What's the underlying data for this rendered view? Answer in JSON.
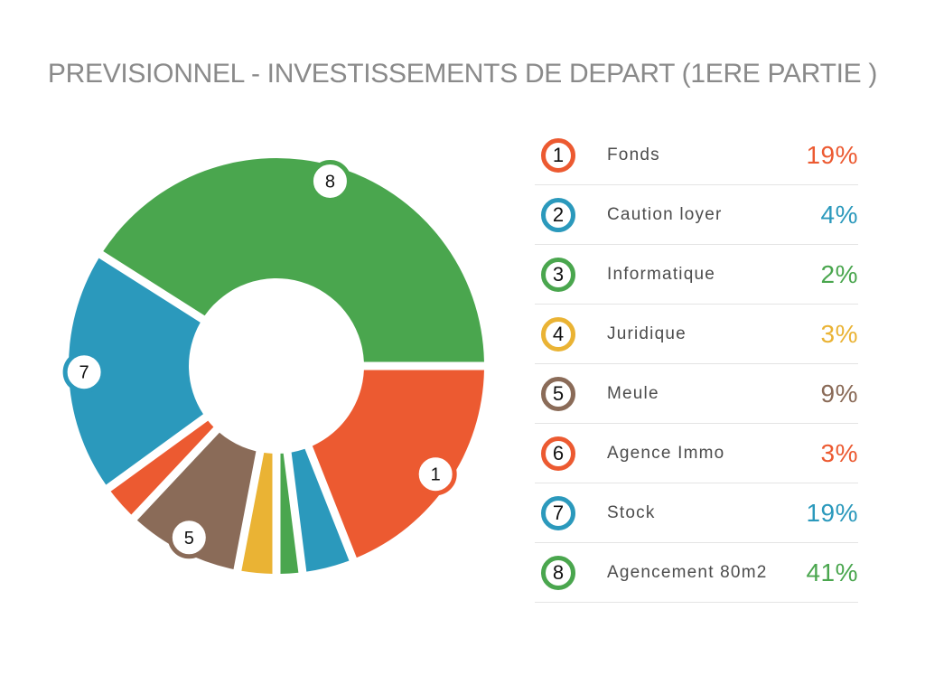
{
  "title": "PREVISIONNEL - INVESTISSEMENTS DE DEPART (1ERE PARTIE )",
  "colors": {
    "title": "#8A8A8A",
    "label": "#4C4C4C",
    "number": "#111111",
    "separator": "#E4E4E4",
    "background": "#FFFFFF",
    "orange": "#EC5A31",
    "teal": "#2B99BC",
    "green": "#4AA64E",
    "yellow": "#EAB334",
    "brown": "#8A6B58"
  },
  "chart_data": {
    "type": "pie",
    "variant": "donut",
    "title": "PREVISIONNEL - INVESTISSEMENTS DE DEPART (1ERE PARTIE )",
    "start_angle_deg": 0,
    "direction": "clockwise",
    "total": 100,
    "legend_position": "right",
    "segments": [
      {
        "n": "1",
        "label": "Fonds",
        "value": 19,
        "pct": "19%",
        "color": "#EC5A31",
        "chart_badge": true
      },
      {
        "n": "2",
        "label": "Caution loyer",
        "value": 4,
        "pct": "4%",
        "color": "#2B99BC",
        "chart_badge": false
      },
      {
        "n": "3",
        "label": "Informatique",
        "value": 2,
        "pct": "2%",
        "color": "#4AA64E",
        "chart_badge": false
      },
      {
        "n": "4",
        "label": "Juridique",
        "value": 3,
        "pct": "3%",
        "color": "#EAB334",
        "chart_badge": false
      },
      {
        "n": "5",
        "label": "Meule",
        "value": 9,
        "pct": "9%",
        "color": "#8A6B58",
        "chart_badge": true
      },
      {
        "n": "6",
        "label": "Agence Immo",
        "value": 3,
        "pct": "3%",
        "color": "#EC5A31",
        "chart_badge": false
      },
      {
        "n": "7",
        "label": "Stock",
        "value": 19,
        "pct": "19%",
        "color": "#2B99BC",
        "chart_badge": true
      },
      {
        "n": "8",
        "label": "Agencement 80m2",
        "value": 41,
        "pct": "41%",
        "color": "#4AA64E",
        "chart_badge": true
      }
    ]
  }
}
